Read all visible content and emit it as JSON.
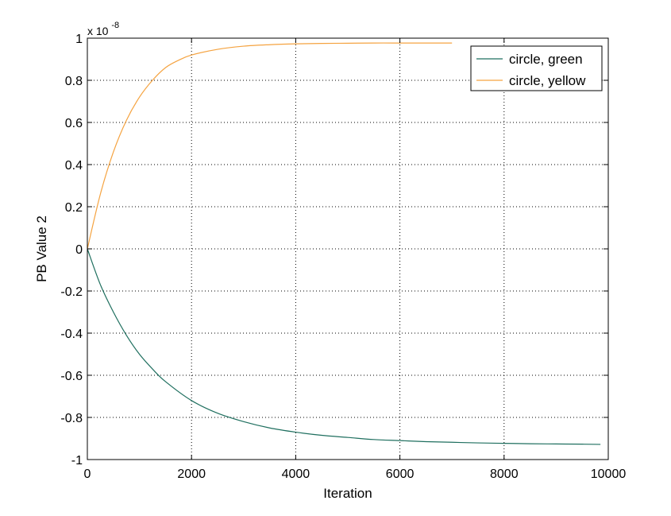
{
  "chart_data": {
    "type": "line",
    "xlabel": "Iteration",
    "ylabel": "PB Value 2",
    "y_scale_label": "x 10",
    "y_scale_exponent": "-8",
    "xlim": [
      0,
      10000
    ],
    "ylim": [
      -1,
      1
    ],
    "x_ticks": [
      0,
      2000,
      4000,
      6000,
      8000,
      10000
    ],
    "x_tick_labels": [
      "0",
      "2000",
      "4000",
      "6000",
      "8000",
      "10000"
    ],
    "y_ticks": [
      1,
      0.8,
      0.6,
      0.4,
      0.2,
      0,
      -0.2,
      -0.4,
      -0.6,
      -0.8,
      -1
    ],
    "y_tick_labels": [
      "1",
      "0.8",
      "0.6",
      "0.4",
      "0.2",
      "0",
      "-0.2",
      "-0.4",
      "-0.6",
      "-0.8",
      "-1"
    ],
    "grid": true,
    "legend_position": "top-right",
    "series": [
      {
        "name": "circle, green",
        "color": "#1f6f5f",
        "x": [
          0,
          250,
          500,
          750,
          1000,
          1250,
          1500,
          2000,
          2500,
          3000,
          3500,
          4000,
          4500,
          5000,
          5500,
          6000,
          6500,
          7000,
          7500,
          8000,
          8500,
          9000,
          9500,
          9850
        ],
        "y": [
          0,
          -0.17,
          -0.3,
          -0.41,
          -0.5,
          -0.57,
          -0.63,
          -0.72,
          -0.78,
          -0.82,
          -0.85,
          -0.87,
          -0.885,
          -0.895,
          -0.905,
          -0.91,
          -0.915,
          -0.918,
          -0.921,
          -0.923,
          -0.925,
          -0.926,
          -0.927,
          -0.928
        ]
      },
      {
        "name": "circle, yellow",
        "color": "#f5a340",
        "x": [
          0,
          250,
          500,
          750,
          1000,
          1250,
          1500,
          1750,
          2000,
          2500,
          3000,
          3500,
          4000,
          4500,
          5000,
          5500,
          6000,
          6500,
          7000
        ],
        "y": [
          0,
          0.26,
          0.46,
          0.61,
          0.72,
          0.8,
          0.86,
          0.895,
          0.92,
          0.947,
          0.962,
          0.969,
          0.973,
          0.975,
          0.976,
          0.977,
          0.977,
          0.977,
          0.977
        ]
      }
    ]
  }
}
